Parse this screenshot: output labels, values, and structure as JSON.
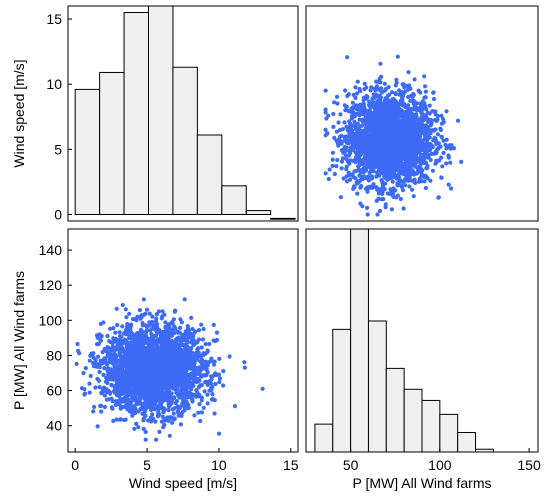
{
  "chart_data": {
    "type": "scatter-matrix",
    "variables": [
      "Wind speed [m/s]",
      "P [MW] All Wind farms"
    ],
    "colors": {
      "points": "#3d6bf5",
      "bars": "#f0f0f0",
      "axes": "#000000"
    },
    "panels": [
      {
        "id": "hist-wind",
        "type": "histogram",
        "row": 0,
        "col": 0,
        "ylabel": "Wind speed [m/s]",
        "ylim": [
          -0.5,
          16
        ],
        "yticks": [
          0,
          5,
          10,
          15
        ],
        "xlim": [
          -0.5,
          15.5
        ],
        "bins": [
          {
            "x0": 0,
            "x1": 1.7,
            "value": 9.6
          },
          {
            "x0": 1.7,
            "x1": 3.4,
            "value": 10.9
          },
          {
            "x0": 3.4,
            "x1": 5.1,
            "value": 15.5
          },
          {
            "x0": 5.1,
            "x1": 6.8,
            "value": 16
          },
          {
            "x0": 6.8,
            "x1": 8.5,
            "value": 11.3
          },
          {
            "x0": 8.5,
            "x1": 10.2,
            "value": 6.1
          },
          {
            "x0": 10.2,
            "x1": 11.9,
            "value": 2.2
          },
          {
            "x0": 11.9,
            "x1": 13.6,
            "value": 0.3
          },
          {
            "x0": 13.6,
            "x1": 15.3,
            "value": -0.3
          }
        ]
      },
      {
        "id": "scatter-p-vs-wind",
        "type": "scatter",
        "row": 0,
        "col": 1,
        "xlim": [
          25,
          155
        ],
        "ylim": [
          -0.5,
          16
        ],
        "cloud": {
          "x_range": [
            36,
            128
          ],
          "y_range": [
            0,
            15.5
          ],
          "n": 2600,
          "center": [
            72,
            5.8
          ],
          "spread": [
            22,
            3.2
          ]
        }
      },
      {
        "id": "scatter-wind-vs-p",
        "type": "scatter",
        "row": 1,
        "col": 0,
        "ylabel": "P [MW] All Wind farms",
        "xlabel": "Wind speed [m/s]",
        "xlim": [
          -0.5,
          15.5
        ],
        "xticks": [
          0,
          5,
          10,
          15
        ],
        "ylim": [
          25,
          152
        ],
        "yticks": [
          40,
          60,
          80,
          100,
          120,
          140
        ],
        "cloud": {
          "x_range": [
            0,
            15
          ],
          "y_range": [
            32,
            148
          ],
          "n": 2600,
          "center": [
            5.5,
            72
          ],
          "spread": [
            3.2,
            22
          ]
        }
      },
      {
        "id": "hist-power",
        "type": "histogram",
        "row": 1,
        "col": 1,
        "xlabel": "P [MW] All Wind farms",
        "xlim": [
          25,
          155
        ],
        "xticks": [
          50,
          100,
          150
        ],
        "ylim": [
          0,
          160
        ],
        "bins": [
          {
            "x0": 30,
            "x1": 40,
            "value": 20
          },
          {
            "x0": 40,
            "x1": 50,
            "value": 88
          },
          {
            "x0": 50,
            "x1": 60,
            "value": 160
          },
          {
            "x0": 60,
            "x1": 70,
            "value": 94
          },
          {
            "x0": 70,
            "x1": 80,
            "value": 60
          },
          {
            "x0": 80,
            "x1": 90,
            "value": 45
          },
          {
            "x0": 90,
            "x1": 100,
            "value": 37
          },
          {
            "x0": 100,
            "x1": 110,
            "value": 27
          },
          {
            "x0": 110,
            "x1": 120,
            "value": 14
          },
          {
            "x0": 120,
            "x1": 130,
            "value": 2
          }
        ]
      }
    ]
  }
}
